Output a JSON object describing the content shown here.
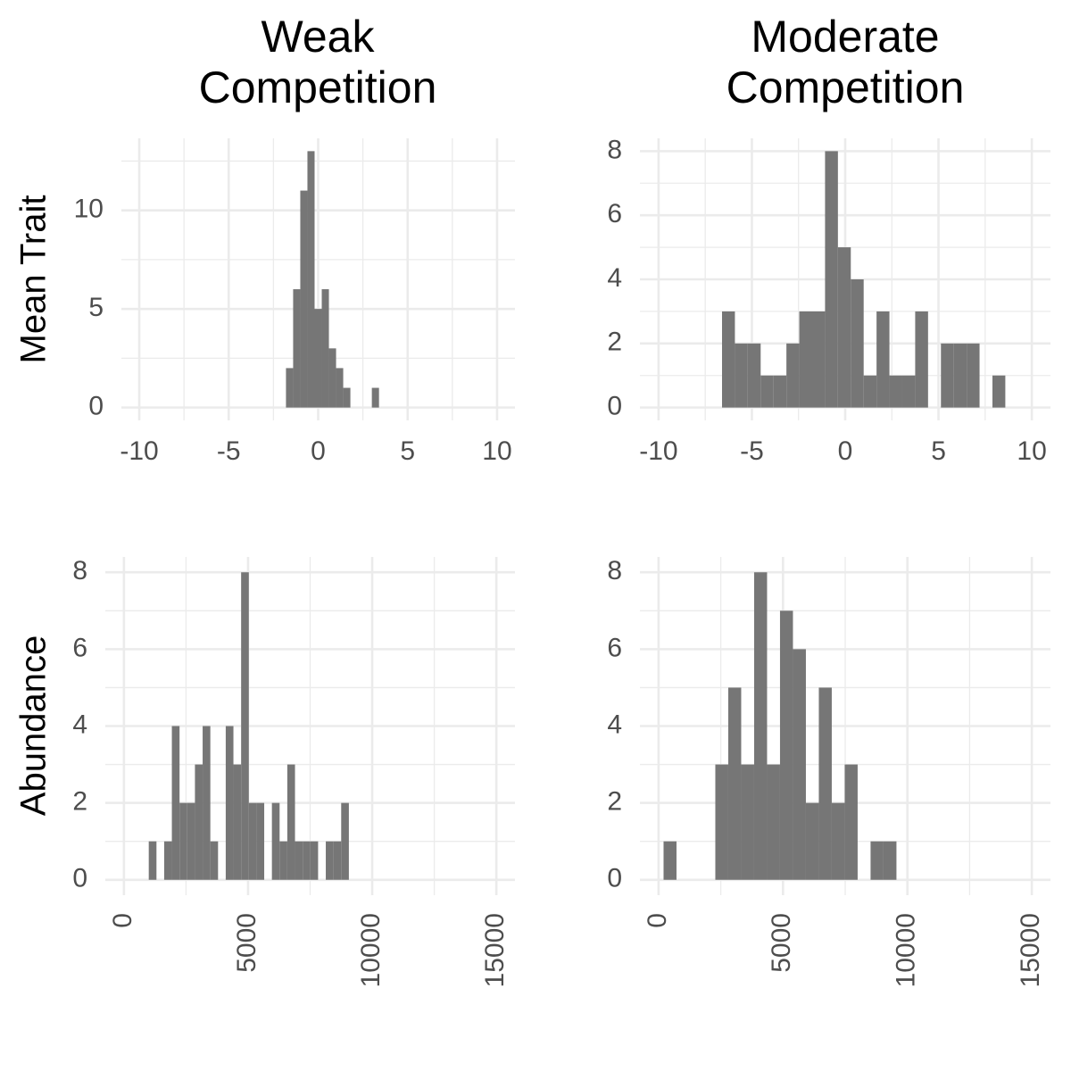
{
  "column_titles": [
    [
      "Weak",
      "Competition"
    ],
    [
      "Moderate",
      "Competition"
    ]
  ],
  "row_titles": [
    "Mean Trait",
    "Abundance"
  ],
  "chart_data": [
    {
      "type": "histogram",
      "color": "#767676",
      "grid": true,
      "bins": [
        -1.8,
        -1.4,
        -1.0,
        -0.6,
        -0.2,
        0.2,
        0.6,
        1.0,
        1.4,
        1.8,
        2.2,
        2.6,
        3.0,
        3.4
      ],
      "counts": [
        2,
        6,
        11,
        13,
        5,
        6,
        3,
        2,
        1,
        0,
        0,
        0,
        1
      ],
      "xlim": [
        -11,
        11
      ],
      "xticks": [
        -10,
        -5,
        0,
        5,
        10
      ],
      "minor_xticks": [
        -7.5,
        -2.5,
        2.5,
        7.5
      ],
      "ylim": [
        -0.65,
        13.65
      ],
      "yticks": [
        0,
        5,
        10
      ],
      "minor_yticks": [
        2.5,
        7.5,
        12.5
      ]
    },
    {
      "type": "histogram",
      "color": "#767676",
      "grid": true,
      "bins": [
        -6.6,
        -5.91,
        -5.22,
        -4.53,
        -3.84,
        -3.15,
        -2.46,
        -1.77,
        -1.08,
        -0.39,
        0.3,
        0.99,
        1.68,
        2.37,
        3.06,
        3.75,
        4.44,
        5.13,
        5.82,
        6.51,
        7.2,
        7.89,
        8.58
      ],
      "counts": [
        3,
        2,
        2,
        1,
        1,
        2,
        3,
        3,
        8,
        5,
        4,
        1,
        3,
        1,
        1,
        3,
        0,
        2,
        2,
        2,
        0,
        1
      ],
      "xlim": [
        -11,
        11
      ],
      "xticks": [
        -10,
        -5,
        0,
        5,
        10
      ],
      "minor_xticks": [
        -7.5,
        -2.5,
        2.5,
        7.5
      ],
      "ylim": [
        -0.4,
        8.4
      ],
      "yticks": [
        0,
        2,
        4,
        6,
        8
      ],
      "minor_yticks": [
        1,
        3,
        5,
        7
      ]
    },
    {
      "type": "histogram",
      "color": "#767676",
      "grid": true,
      "xtick_rotation": 90,
      "bins": [
        1000,
        1310,
        1620,
        1930,
        2240,
        2550,
        2860,
        3170,
        3480,
        3790,
        4100,
        4410,
        4720,
        5030,
        5340,
        5650,
        5960,
        6270,
        6580,
        6890,
        7200,
        7510,
        7820,
        8130,
        8440,
        8750,
        9060
      ],
      "counts": [
        1,
        0,
        1,
        4,
        2,
        2,
        3,
        4,
        1,
        0,
        4,
        3,
        8,
        2,
        2,
        0,
        2,
        1,
        3,
        1,
        1,
        1,
        0,
        1,
        1,
        2
      ],
      "xlim": [
        -750,
        15750
      ],
      "xticks": [
        0,
        5000,
        10000,
        15000
      ],
      "minor_xticks": [
        2500,
        7500,
        12500
      ],
      "ylim": [
        -0.4,
        8.4
      ],
      "yticks": [
        0,
        2,
        4,
        6,
        8
      ],
      "minor_yticks": [
        1,
        3,
        5,
        7
      ]
    },
    {
      "type": "histogram",
      "color": "#767676",
      "grid": true,
      "xtick_rotation": 90,
      "bins": [
        200,
        720,
        1240,
        1760,
        2280,
        2800,
        3320,
        3840,
        4360,
        4880,
        5400,
        5920,
        6440,
        6960,
        7480,
        8000,
        8520,
        9040,
        9560
      ],
      "counts": [
        1,
        0,
        0,
        0,
        3,
        5,
        3,
        8,
        3,
        7,
        6,
        2,
        5,
        2,
        3,
        0,
        1,
        1
      ],
      "xlim": [
        -750,
        15750
      ],
      "xticks": [
        0,
        5000,
        10000,
        15000
      ],
      "minor_xticks": [
        2500,
        7500,
        12500
      ],
      "ylim": [
        -0.4,
        8.4
      ],
      "yticks": [
        0,
        2,
        4,
        6,
        8
      ],
      "minor_yticks": [
        1,
        3,
        5,
        7
      ]
    }
  ]
}
